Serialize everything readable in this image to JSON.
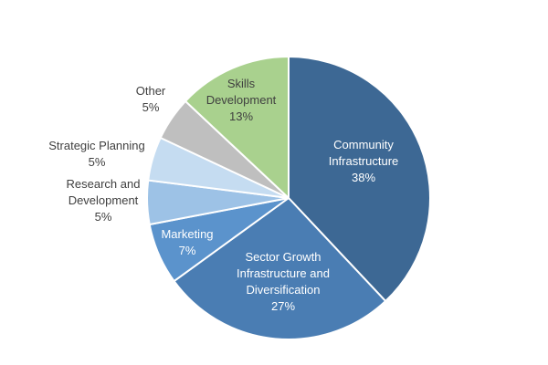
{
  "chart_data": {
    "type": "pie",
    "title": "",
    "start": "12 o'clock",
    "direction": "clockwise",
    "slices": [
      {
        "name": "Community Infrastructure",
        "value": 38,
        "label": "38%",
        "color": "#3D6894",
        "label_color": "#FFFFFF",
        "label_position": "inside"
      },
      {
        "name": "Sector Growth Infrastructure and Diversification",
        "value": 27,
        "label": "27%",
        "color": "#4A7DB3",
        "label_color": "#FFFFFF",
        "label_position": "inside"
      },
      {
        "name": "Marketing",
        "value": 7,
        "label": "7%",
        "color": "#5B93CC",
        "label_color": "#FFFFFF",
        "label_position": "inside"
      },
      {
        "name": "Research and Development",
        "value": 5,
        "label": "5%",
        "color": "#9DC2E6",
        "label_color": "#404040",
        "label_position": "outside"
      },
      {
        "name": "Strategic Planning",
        "value": 5,
        "label": "5%",
        "color": "#C5DCF1",
        "label_color": "#404040",
        "label_position": "outside"
      },
      {
        "name": "Other",
        "value": 5,
        "label": "5%",
        "color": "#BFBFBF",
        "label_color": "#404040",
        "label_position": "outside"
      },
      {
        "name": "Skills Development",
        "value": 13,
        "label": "13%",
        "color": "#A9D18E",
        "label_color": "#404040",
        "label_position": "inside"
      }
    ]
  }
}
